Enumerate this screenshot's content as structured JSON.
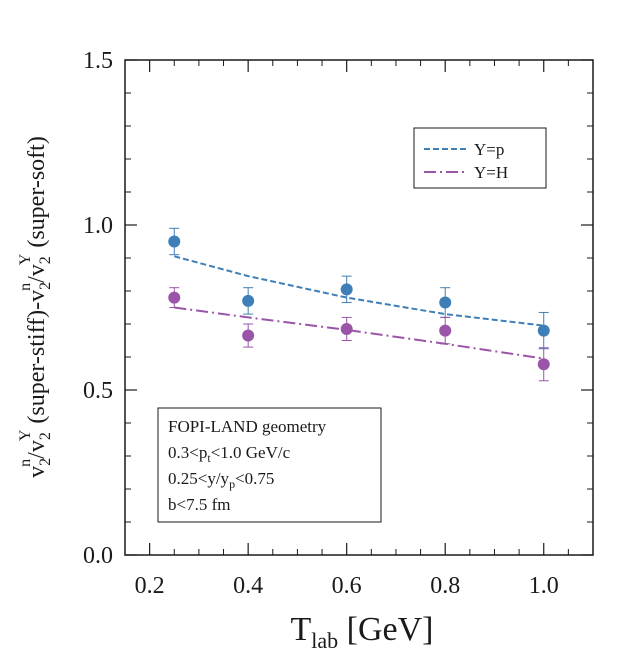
{
  "chart_data": {
    "type": "scatter",
    "xlim": [
      0.15,
      1.1
    ],
    "ylim": [
      0.0,
      1.5
    ],
    "x_ticks": [
      "0.2",
      "0.4",
      "0.6",
      "0.8",
      "1.0"
    ],
    "x_tick_values": [
      0.2,
      0.4,
      0.6,
      0.8,
      1.0
    ],
    "y_ticks": [
      "0.0",
      "0.5",
      "1.0",
      "1.5"
    ],
    "y_tick_values": [
      0.0,
      0.5,
      1.0,
      1.5
    ],
    "xlabel": {
      "main": "T",
      "sub": "lab",
      "rest": " [GeV]"
    },
    "ylabel": [
      "v",
      "2",
      "n",
      "/v",
      "2",
      "Y",
      " (super-stiff)-v",
      "2",
      "n",
      "/v",
      "2",
      "Y",
      " (super-soft)"
    ],
    "grid": false,
    "legend_position": "top-right",
    "series": [
      {
        "name": "Y=p",
        "color": "#3f7fb8",
        "line_style": "dashed",
        "points": [
          {
            "x": 0.25,
            "y": 0.95,
            "err": 0.04
          },
          {
            "x": 0.4,
            "y": 0.77,
            "err": 0.04
          },
          {
            "x": 0.6,
            "y": 0.805,
            "err": 0.04
          },
          {
            "x": 0.8,
            "y": 0.765,
            "err": 0.045
          },
          {
            "x": 1.0,
            "y": 0.68,
            "err": 0.055
          }
        ],
        "fit": [
          {
            "x": 0.25,
            "y": 0.905
          },
          {
            "x": 0.4,
            "y": 0.845
          },
          {
            "x": 0.6,
            "y": 0.78
          },
          {
            "x": 0.8,
            "y": 0.73
          },
          {
            "x": 1.0,
            "y": 0.695
          }
        ]
      },
      {
        "name": "Y=H",
        "color": "#9a55a8",
        "line_style": "dashdot",
        "points": [
          {
            "x": 0.25,
            "y": 0.78,
            "err": 0.03
          },
          {
            "x": 0.4,
            "y": 0.665,
            "err": 0.035
          },
          {
            "x": 0.6,
            "y": 0.685,
            "err": 0.035
          },
          {
            "x": 0.8,
            "y": 0.68,
            "err": 0.04
          },
          {
            "x": 1.0,
            "y": 0.578,
            "err": 0.05
          }
        ],
        "fit": [
          {
            "x": 0.25,
            "y": 0.75
          },
          {
            "x": 0.4,
            "y": 0.72
          },
          {
            "x": 0.6,
            "y": 0.682
          },
          {
            "x": 0.8,
            "y": 0.64
          },
          {
            "x": 1.0,
            "y": 0.595
          }
        ]
      }
    ],
    "annotation": {
      "line1": "FOPI-LAND geometry",
      "line2": {
        "a": "0.3<p",
        "sub": "t",
        "b": "<1.0 GeV/c"
      },
      "line3": {
        "a": "0.25<y/y",
        "sub": "p",
        "b": "<0.75"
      },
      "line4": "b<7.5 fm"
    }
  }
}
